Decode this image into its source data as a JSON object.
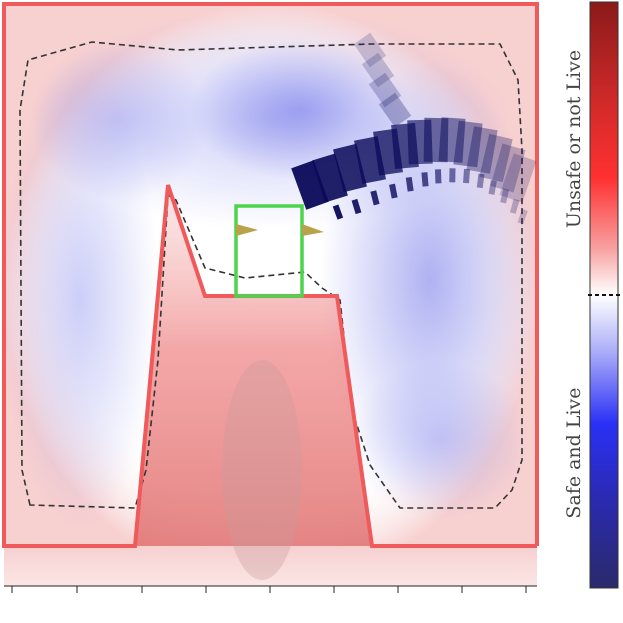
{
  "colorbar": {
    "top_label": "Unsafe or not Live",
    "bottom_label": "Safe and Live",
    "top_color": "#8b1a1a",
    "mid_color": "#ffffff",
    "bottom_color": "#2a2a6b"
  },
  "colors": {
    "obstacle_boundary": "#f05a5a",
    "target_box": "#4cd44c",
    "level_set": "#333333",
    "robot_trail": "#0a0a5a",
    "target_marker": "#b8a24a"
  }
}
